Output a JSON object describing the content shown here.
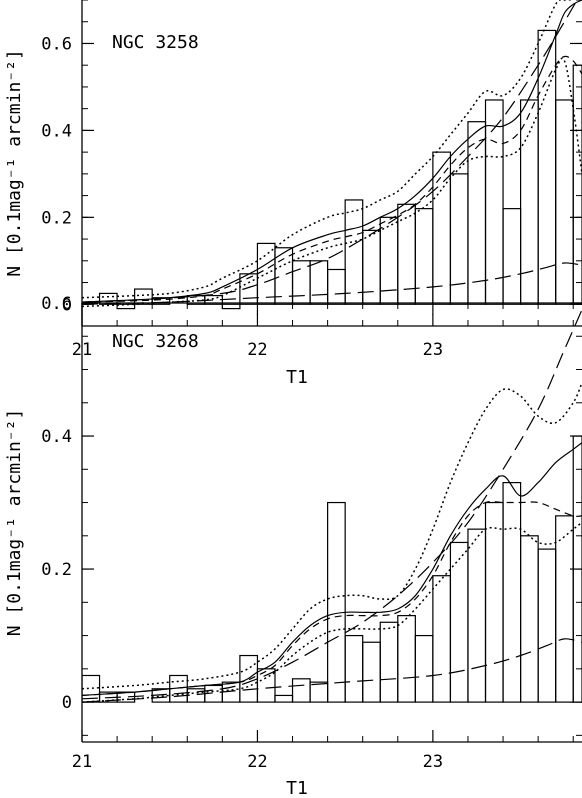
{
  "chart_data": [
    {
      "type": "line",
      "annotation": "NGC 3258",
      "xlabel": "T1",
      "ylabel": "N [0.1mag⁻¹ arcmin⁻²]",
      "xlim": [
        21,
        23.85
      ],
      "ylim": [
        -0.05,
        0.7
      ],
      "xticks": [
        21,
        22,
        23
      ],
      "yticks": [
        0,
        0.2,
        0.4,
        0.6
      ],
      "xtick_labels": [
        "21",
        "22",
        "23"
      ],
      "ytick_labels": [
        "0",
        "0.2",
        "0.4",
        "0.6"
      ],
      "histogram": {
        "edges": [
          21.0,
          21.1,
          21.2,
          21.3,
          21.4,
          21.5,
          21.6,
          21.7,
          21.8,
          21.9,
          22.0,
          22.1,
          22.2,
          22.3,
          22.4,
          22.5,
          22.6,
          22.7,
          22.8,
          22.9,
          23.0,
          23.1,
          23.2,
          23.3,
          23.4,
          23.5,
          23.6,
          23.7,
          23.8,
          23.85
        ],
        "values": [
          0.0,
          0.025,
          -0.01,
          0.035,
          0.015,
          0.0,
          0.02,
          0.02,
          -0.01,
          0.07,
          0.14,
          0.13,
          0.1,
          0.1,
          0.08,
          0.24,
          0.17,
          0.2,
          0.23,
          0.22,
          0.35,
          0.3,
          0.42,
          0.47,
          0.22,
          0.47,
          0.63,
          0.47,
          0.55
        ]
      },
      "series": [
        {
          "style": "solid",
          "x": [
            21.0,
            21.3,
            21.5,
            21.7,
            21.8,
            22.0,
            22.2,
            22.4,
            22.5,
            22.6,
            22.7,
            22.8,
            22.9,
            23.0,
            23.1,
            23.2,
            23.3,
            23.4,
            23.5,
            23.6,
            23.7,
            23.75,
            23.8,
            23.85
          ],
          "y": [
            0.005,
            0.01,
            0.015,
            0.025,
            0.04,
            0.08,
            0.13,
            0.16,
            0.17,
            0.18,
            0.2,
            0.22,
            0.25,
            0.29,
            0.34,
            0.38,
            0.41,
            0.41,
            0.44,
            0.52,
            0.62,
            0.67,
            0.69,
            0.7
          ]
        },
        {
          "style": "dotted",
          "x": [
            21.0,
            21.3,
            21.5,
            21.7,
            21.8,
            22.0,
            22.2,
            22.4,
            22.5,
            22.6,
            22.7,
            22.8,
            22.9,
            23.0,
            23.1,
            23.2,
            23.3,
            23.4,
            23.5,
            23.6,
            23.7,
            23.75,
            23.8
          ],
          "y": [
            0.015,
            0.02,
            0.025,
            0.04,
            0.06,
            0.1,
            0.16,
            0.2,
            0.21,
            0.22,
            0.24,
            0.26,
            0.3,
            0.34,
            0.39,
            0.44,
            0.49,
            0.48,
            0.52,
            0.6,
            0.69,
            0.7,
            0.7
          ]
        },
        {
          "style": "dotted",
          "x": [
            21.0,
            21.3,
            21.5,
            21.7,
            21.8,
            22.0,
            22.2,
            22.4,
            22.5,
            22.6,
            22.7,
            22.8,
            22.9,
            23.0,
            23.1,
            23.2,
            23.3,
            23.4,
            23.5,
            23.6,
            23.7,
            23.75,
            23.8,
            23.85
          ],
          "y": [
            -0.005,
            0.0,
            0.005,
            0.01,
            0.02,
            0.06,
            0.1,
            0.13,
            0.14,
            0.15,
            0.17,
            0.19,
            0.21,
            0.24,
            0.29,
            0.33,
            0.34,
            0.34,
            0.36,
            0.44,
            0.54,
            0.56,
            0.45,
            0.3
          ]
        },
        {
          "style": "short-dashed",
          "x": [
            21.0,
            21.3,
            21.5,
            21.7,
            21.8,
            22.0,
            22.2,
            22.4,
            22.5,
            22.6,
            22.7,
            22.8,
            22.9,
            23.0,
            23.1,
            23.2,
            23.3,
            23.4,
            23.5,
            23.6,
            23.7,
            23.75,
            23.8,
            23.85
          ],
          "y": [
            0.005,
            0.008,
            0.012,
            0.02,
            0.035,
            0.07,
            0.115,
            0.145,
            0.155,
            0.165,
            0.185,
            0.205,
            0.23,
            0.27,
            0.32,
            0.36,
            0.38,
            0.37,
            0.4,
            0.48,
            0.55,
            0.57,
            0.56,
            0.53
          ]
        },
        {
          "style": "long-dashed",
          "x": [
            21.0,
            21.4,
            21.8,
            22.0,
            22.2,
            22.4,
            22.6,
            22.8,
            23.0,
            23.2,
            23.4,
            23.6,
            23.75,
            23.85
          ],
          "y": [
            0.005,
            0.012,
            0.025,
            0.045,
            0.075,
            0.105,
            0.15,
            0.2,
            0.26,
            0.34,
            0.43,
            0.55,
            0.65,
            0.72
          ]
        },
        {
          "style": "long-dashed",
          "x": [
            21.0,
            21.5,
            22.0,
            22.5,
            23.0,
            23.3,
            23.5,
            23.65,
            23.75,
            23.85
          ],
          "y": [
            0.0,
            0.005,
            0.015,
            0.025,
            0.04,
            0.055,
            0.07,
            0.085,
            0.095,
            0.09
          ]
        }
      ]
    },
    {
      "type": "line",
      "annotation": "NGC 3268",
      "xlabel": "T1",
      "ylabel": "N [0.1mag⁻¹ arcmin⁻²]",
      "xlim": [
        21,
        23.85
      ],
      "ylim": [
        -0.06,
        0.6
      ],
      "xticks": [
        21,
        22,
        23
      ],
      "yticks": [
        0,
        0.2,
        0.4,
        0.6
      ],
      "xtick_labels": [
        "21",
        "22",
        "23"
      ],
      "ytick_labels": [
        "0",
        "0.2",
        "0.4",
        "0.6"
      ],
      "histogram": {
        "edges": [
          21.0,
          21.1,
          21.2,
          21.3,
          21.4,
          21.5,
          21.6,
          21.7,
          21.8,
          21.9,
          22.0,
          22.1,
          22.2,
          22.3,
          22.4,
          22.5,
          22.6,
          22.7,
          22.8,
          22.9,
          23.0,
          23.1,
          23.2,
          23.3,
          23.4,
          23.5,
          23.6,
          23.7,
          23.8,
          23.85
        ],
        "values": [
          0.04,
          0.015,
          0.015,
          0.0,
          0.02,
          0.04,
          0.02,
          0.025,
          0.03,
          0.07,
          0.05,
          0.01,
          0.035,
          0.03,
          0.3,
          0.1,
          0.09,
          0.12,
          0.13,
          0.1,
          0.19,
          0.24,
          0.26,
          0.3,
          0.33,
          0.25,
          0.23,
          0.28,
          0.4
        ]
      },
      "series": [
        {
          "style": "solid",
          "x": [
            21.0,
            21.3,
            21.5,
            21.7,
            21.9,
            22.0,
            22.1,
            22.2,
            22.3,
            22.4,
            22.5,
            22.6,
            22.7,
            22.8,
            22.9,
            23.0,
            23.1,
            23.2,
            23.3,
            23.4,
            23.5,
            23.6,
            23.7,
            23.8,
            23.85
          ],
          "y": [
            0.01,
            0.015,
            0.02,
            0.025,
            0.03,
            0.045,
            0.06,
            0.09,
            0.115,
            0.13,
            0.135,
            0.135,
            0.135,
            0.14,
            0.16,
            0.2,
            0.25,
            0.29,
            0.32,
            0.34,
            0.31,
            0.33,
            0.36,
            0.38,
            0.39
          ]
        },
        {
          "style": "dotted",
          "x": [
            21.0,
            21.3,
            21.5,
            21.7,
            21.9,
            22.0,
            22.1,
            22.2,
            22.3,
            22.4,
            22.5,
            22.6,
            22.7,
            22.8,
            22.9,
            23.0,
            23.1,
            23.2,
            23.3,
            23.4,
            23.5,
            23.6,
            23.7,
            23.8,
            23.85
          ],
          "y": [
            0.02,
            0.025,
            0.03,
            0.035,
            0.045,
            0.06,
            0.08,
            0.11,
            0.14,
            0.155,
            0.16,
            0.16,
            0.155,
            0.16,
            0.2,
            0.26,
            0.33,
            0.39,
            0.44,
            0.47,
            0.46,
            0.43,
            0.42,
            0.45,
            0.48
          ]
        },
        {
          "style": "dotted",
          "x": [
            21.0,
            21.3,
            21.5,
            21.7,
            21.9,
            22.0,
            22.1,
            22.2,
            22.3,
            22.4,
            22.5,
            22.6,
            22.7,
            22.8,
            22.9,
            23.0,
            23.1,
            23.2,
            23.3,
            23.4,
            23.5,
            23.6,
            23.7,
            23.8,
            23.85
          ],
          "y": [
            0.0,
            0.005,
            0.01,
            0.015,
            0.02,
            0.03,
            0.045,
            0.07,
            0.09,
            0.105,
            0.11,
            0.11,
            0.11,
            0.115,
            0.14,
            0.17,
            0.2,
            0.23,
            0.26,
            0.26,
            0.26,
            0.24,
            0.24,
            0.26,
            0.27
          ]
        },
        {
          "style": "short-dashed",
          "x": [
            21.0,
            21.3,
            21.5,
            21.7,
            21.9,
            22.0,
            22.1,
            22.2,
            22.3,
            22.4,
            22.5,
            22.6,
            22.7,
            22.8,
            22.9,
            23.0,
            23.1,
            23.2,
            23.3,
            23.4,
            23.5,
            23.6,
            23.7,
            23.8,
            23.85
          ],
          "y": [
            0.01,
            0.015,
            0.02,
            0.025,
            0.03,
            0.04,
            0.055,
            0.085,
            0.11,
            0.125,
            0.13,
            0.13,
            0.13,
            0.135,
            0.155,
            0.19,
            0.24,
            0.28,
            0.3,
            0.3,
            0.3,
            0.3,
            0.29,
            0.28,
            0.28
          ]
        },
        {
          "style": "long-dashed",
          "x": [
            21.0,
            21.4,
            21.8,
            22.0,
            22.2,
            22.4,
            22.6,
            22.8,
            23.0,
            23.2,
            23.4,
            23.6,
            23.75,
            23.85
          ],
          "y": [
            0.005,
            0.01,
            0.02,
            0.035,
            0.06,
            0.09,
            0.12,
            0.16,
            0.21,
            0.27,
            0.35,
            0.44,
            0.53,
            0.59
          ]
        },
        {
          "style": "long-dashed",
          "x": [
            21.0,
            21.5,
            22.0,
            22.5,
            23.0,
            23.3,
            23.5,
            23.65,
            23.75,
            23.85
          ],
          "y": [
            0.0,
            0.008,
            0.02,
            0.03,
            0.04,
            0.055,
            0.07,
            0.085,
            0.095,
            0.09
          ]
        }
      ]
    }
  ]
}
